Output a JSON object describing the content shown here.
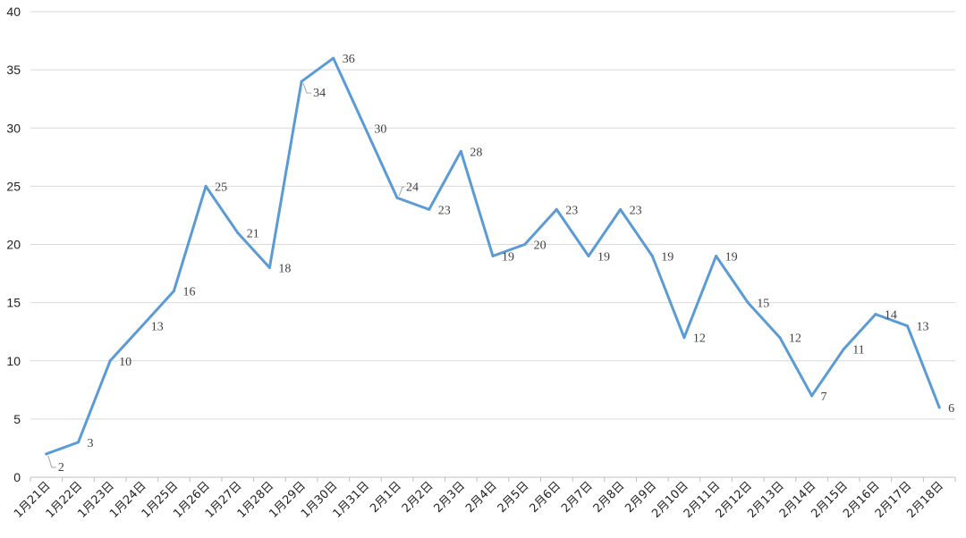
{
  "chart_data": {
    "type": "line",
    "title": "",
    "xlabel": "",
    "ylabel": "",
    "ylim": [
      0,
      40
    ],
    "yticks": [
      0,
      5,
      10,
      15,
      20,
      25,
      30,
      35,
      40
    ],
    "grid": true,
    "legend": "none",
    "categories": [
      "1月21日",
      "1月22日",
      "1月23日",
      "1月24日",
      "1月25日",
      "1月26日",
      "1月27日",
      "1月28日",
      "1月29日",
      "1月30日",
      "1月31日",
      "2月1日",
      "2月2日",
      "2月3日",
      "2月4日",
      "2月5日",
      "2月6日",
      "2月7日",
      "2月8日",
      "2月9日",
      "2月10日",
      "2月11日",
      "2月12日",
      "2月13日",
      "2月14日",
      "2月15日",
      "2月16日",
      "2月17日",
      "2月18日"
    ],
    "series": [
      {
        "color": "#5b9bd5",
        "values": [
          2,
          3,
          10,
          13,
          16,
          25,
          21,
          18,
          34,
          36,
          30,
          24,
          23,
          28,
          19,
          20,
          23,
          19,
          23,
          19,
          12,
          19,
          15,
          12,
          7,
          11,
          14,
          13,
          6
        ]
      }
    ],
    "data_labels": true
  }
}
